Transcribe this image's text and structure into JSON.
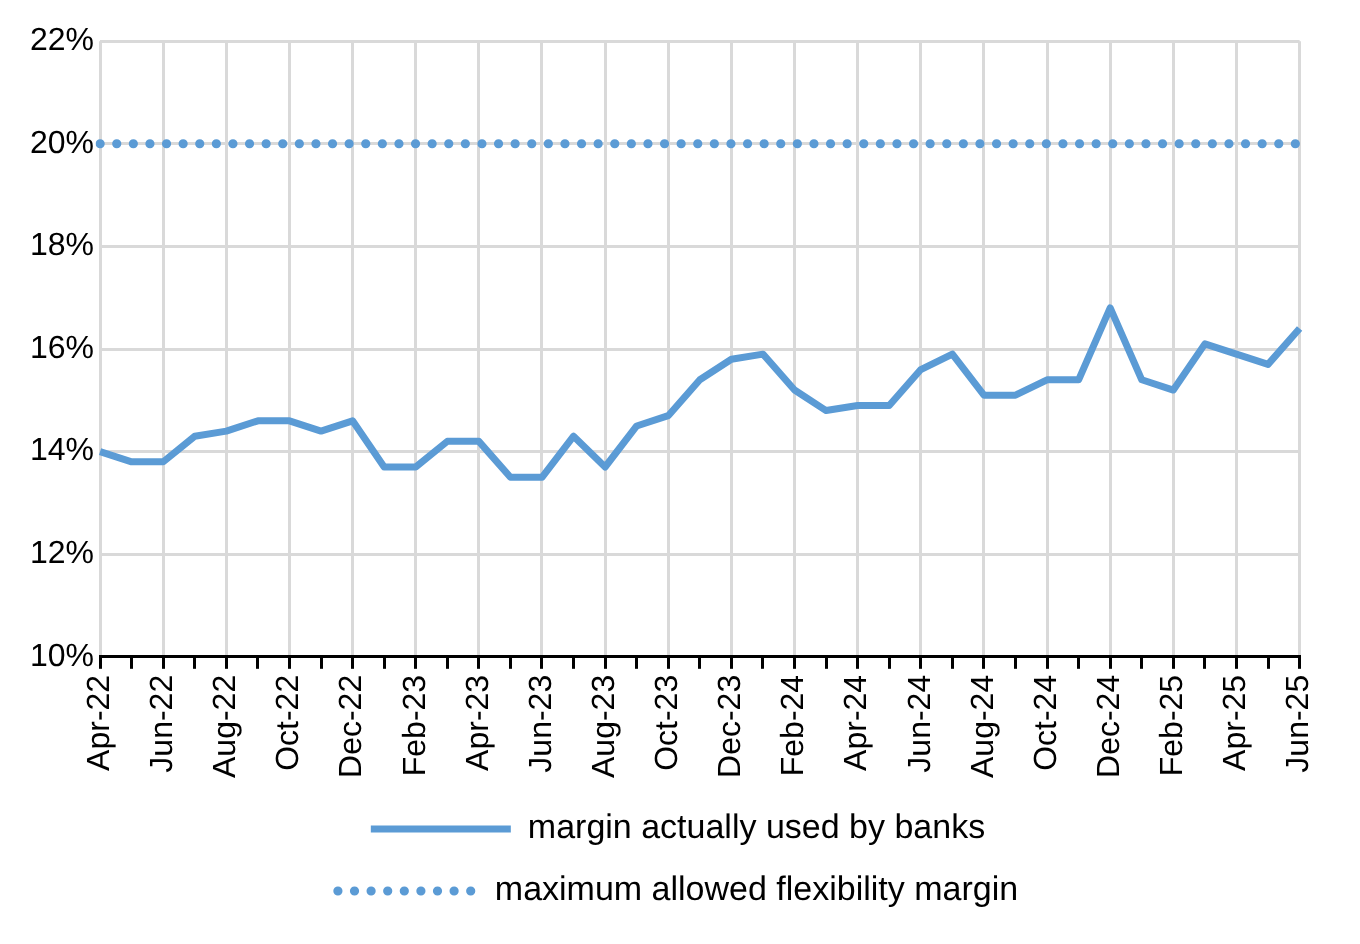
{
  "chart_data": {
    "type": "line",
    "categories": [
      "Apr-22",
      null,
      "Jun-22",
      null,
      "Aug-22",
      null,
      "Oct-22",
      null,
      "Dec-22",
      null,
      "Feb-23",
      null,
      "Apr-23",
      null,
      "Jun-23",
      null,
      "Aug-23",
      null,
      "Oct-23",
      null,
      "Dec-23",
      null,
      "Feb-24",
      null,
      "Apr-24",
      null,
      "Jun-24",
      null,
      "Aug-24",
      null,
      "Oct-24",
      null,
      "Dec-24",
      null,
      "Feb-25",
      null,
      "Apr-25",
      null,
      "Jun-25"
    ],
    "series": [
      {
        "name": "margin actually used by banks",
        "color": "#5b9bd5",
        "line_style": "solid",
        "values": [
          14.0,
          13.8,
          13.8,
          14.3,
          14.4,
          14.6,
          14.6,
          14.4,
          14.6,
          13.7,
          13.7,
          14.2,
          14.2,
          13.5,
          13.5,
          14.3,
          13.7,
          14.5,
          14.7,
          15.4,
          15.8,
          15.9,
          15.2,
          14.8,
          14.9,
          14.9,
          15.6,
          15.9,
          15.1,
          15.1,
          15.4,
          15.4,
          16.8,
          15.4,
          15.2,
          16.1,
          15.9,
          15.7,
          16.4
        ]
      },
      {
        "name": "maximum allowed flexibility margin",
        "color": "#5b9bd5",
        "line_style": "dotted",
        "values": [
          20,
          20,
          20,
          20,
          20,
          20,
          20,
          20,
          20,
          20,
          20,
          20,
          20,
          20,
          20,
          20,
          20,
          20,
          20,
          20,
          20,
          20,
          20,
          20,
          20,
          20,
          20,
          20,
          20,
          20,
          20,
          20,
          20,
          20,
          20,
          20,
          20,
          20,
          20
        ]
      }
    ],
    "ylim": [
      10,
      22
    ],
    "yticks": [
      {
        "value": 10,
        "label": "10%"
      },
      {
        "value": 12,
        "label": "12%"
      },
      {
        "value": 14,
        "label": "14%"
      },
      {
        "value": 16,
        "label": "16%"
      },
      {
        "value": 18,
        "label": "18%"
      },
      {
        "value": 20,
        "label": "20%"
      },
      {
        "value": 22,
        "label": "22%"
      }
    ],
    "grid": true,
    "legend": "bottom",
    "marker": "none"
  }
}
